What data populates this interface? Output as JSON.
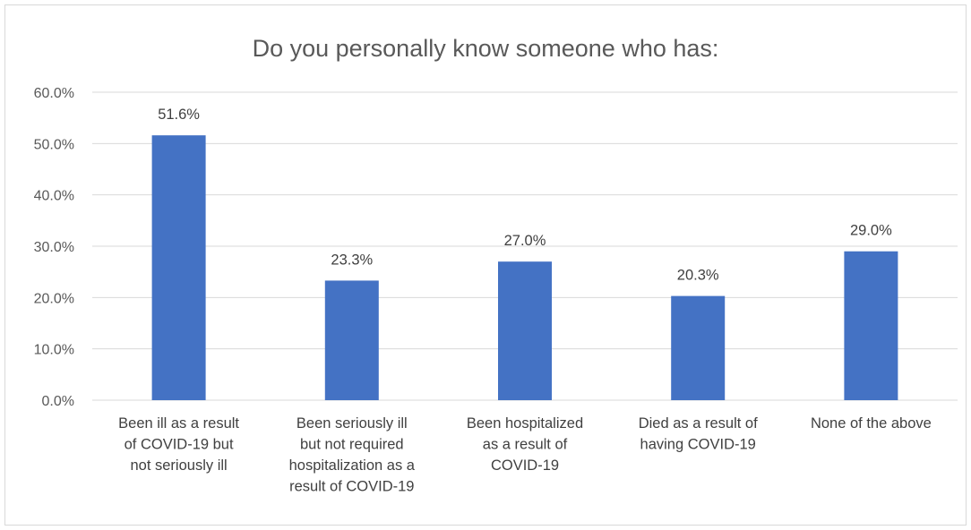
{
  "chart_data": {
    "type": "bar",
    "title": "Do you personally know someone who has:",
    "categories": [
      "Been ill as a result of COVID-19 but not seriously ill",
      "Been seriously ill but not required hospitalization as a result of COVID-19",
      "Been hospitalized as a result of COVID-19",
      "Died as a result of having COVID-19",
      "None of the above"
    ],
    "category_label_lines": [
      [
        "Been ill as a result",
        "of COVID-19 but",
        "not seriously ill"
      ],
      [
        "Been seriously ill",
        "but not required",
        "hospitalization as a",
        "result of COVID-19"
      ],
      [
        "Been hospitalized",
        "as a result of",
        "COVID-19"
      ],
      [
        "Died as a result of",
        "having COVID-19"
      ],
      [
        "None of the above"
      ]
    ],
    "values": [
      51.6,
      23.3,
      27.0,
      20.3,
      29.0
    ],
    "data_labels": [
      "51.6%",
      "23.3%",
      "27.0%",
      "20.3%",
      "29.0%"
    ],
    "ylim": [
      0,
      60
    ],
    "y_ticks": [
      0,
      10,
      20,
      30,
      40,
      50,
      60
    ],
    "y_tick_labels": [
      "0.0%",
      "10.0%",
      "20.0%",
      "30.0%",
      "40.0%",
      "50.0%",
      "60.0%"
    ],
    "xlabel": "",
    "ylabel": "",
    "grid": true,
    "legend": "none",
    "colors": {
      "bar": "#4472C4",
      "grid": "#D9D9D9",
      "axis": "#D9D9D9",
      "title": "#595959",
      "text": "#404040"
    }
  }
}
